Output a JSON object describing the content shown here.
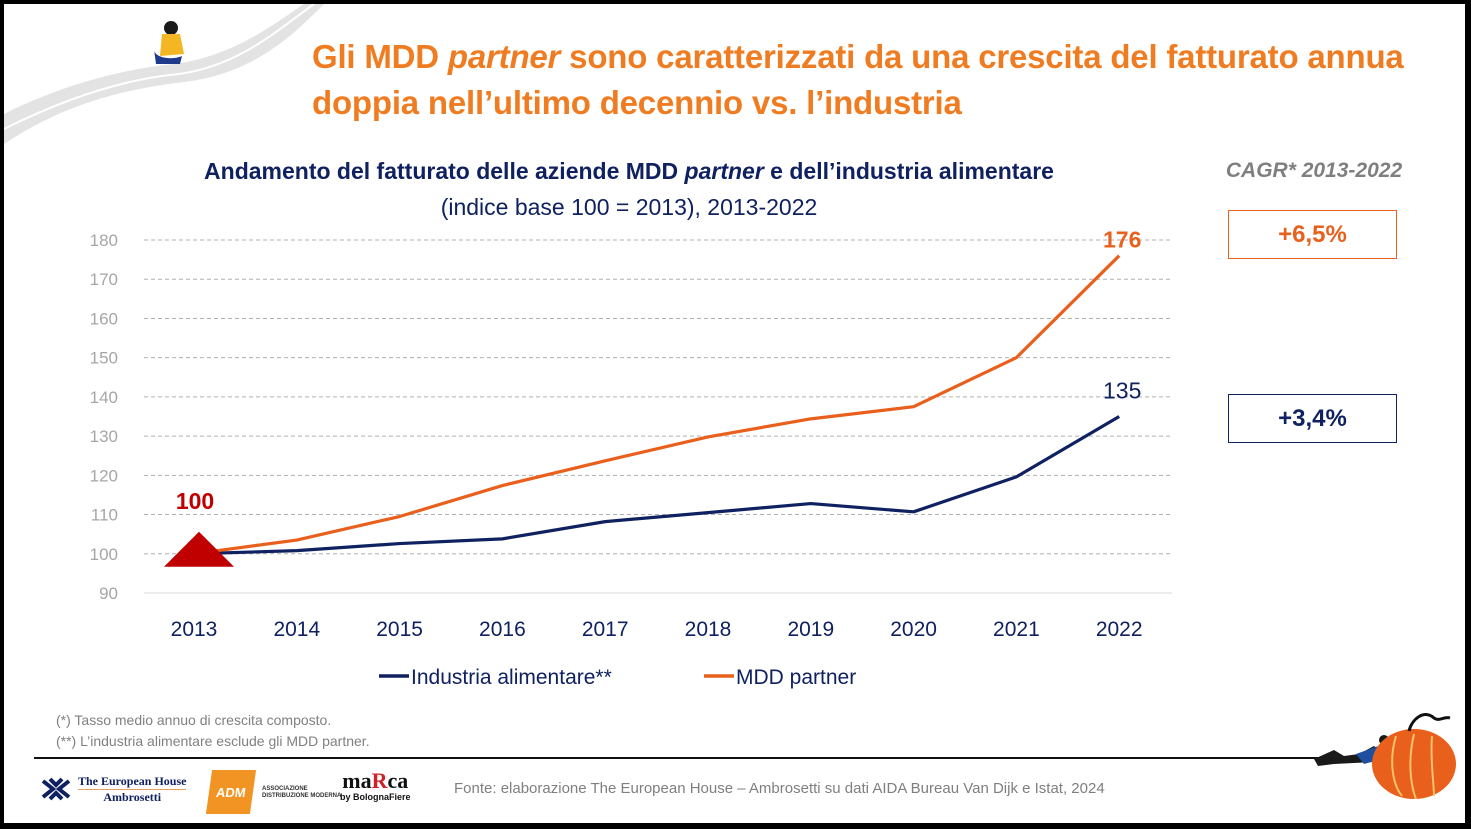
{
  "header": {
    "title_part1": "Gli MDD ",
    "title_italic": "partner",
    "title_part2": " sono caratterizzati da una crescita del fatturato annua doppia nell’ultimo decennio vs. l’industria"
  },
  "chart_header": {
    "title_part1": "Andamento del fatturato delle aziende MDD ",
    "title_italic": "partner",
    "title_part2": " e dell’industria alimentare",
    "subtitle": "(indice base 100 = 2013), 2013-2022"
  },
  "cagr": {
    "title": "CAGR* 2013-2022",
    "mdd_value": "+6,5%",
    "industry_value": "+3,4%"
  },
  "colors": {
    "mdd": "#E8601C",
    "industry": "#0F2160",
    "base_marker": "#C00000",
    "title_orange": "#F07C22",
    "grid": "#B0B0B0",
    "axis_text": "#A6A6A6"
  },
  "chart_data": {
    "type": "line",
    "title": "Andamento del fatturato delle aziende MDD partner e dell’industria alimentare",
    "subtitle": "(indice base 100 = 2013), 2013-2022",
    "xlabel": "",
    "ylabel": "",
    "x": [
      "2013",
      "2014",
      "2015",
      "2016",
      "2017",
      "2018",
      "2019",
      "2020",
      "2021",
      "2022"
    ],
    "yticks": [
      90,
      100,
      110,
      120,
      130,
      140,
      150,
      160,
      170,
      180
    ],
    "ylim": [
      90,
      180
    ],
    "grid": true,
    "legend_position": "bottom",
    "series": [
      {
        "name": "Industria alimentare**",
        "color": "#0F2160",
        "values": [
          100,
          100.8,
          102.6,
          103.8,
          108.2,
          110.5,
          112.8,
          110.7,
          119.6,
          135
        ],
        "end_label": "135"
      },
      {
        "name": "MDD partner",
        "color": "#E8601C",
        "values": [
          100,
          103.5,
          109.5,
          117.4,
          123.7,
          129.8,
          134.4,
          137.5,
          150,
          176
        ],
        "end_label": "176"
      }
    ],
    "annotations": [
      {
        "text": "100",
        "x": "2013",
        "y": 100,
        "marker": "triangle"
      }
    ]
  },
  "footnotes": [
    "(*) Tasso medio annuo di crescita composto.",
    "(**) L’industria alimentare esclude gli MDD partner."
  ],
  "footer": {
    "source": "Fonte: elaborazione The European House – Ambrosetti su dati AIDA Bureau Van Dijk e Istat, 2024",
    "logo_teh_line1": "The European House",
    "logo_teh_line2": "Ambrosetti",
    "logo_adm": "ADM",
    "logo_adm_line1": "ASSOCIAZIONE",
    "logo_adm_line2": "DISTRIBUZIONE MODERNA",
    "logo_marca_pre": "ma",
    "logo_marca_r": "R",
    "logo_marca_post": "ca",
    "logo_marca_sub": "by BolognaFiere"
  }
}
